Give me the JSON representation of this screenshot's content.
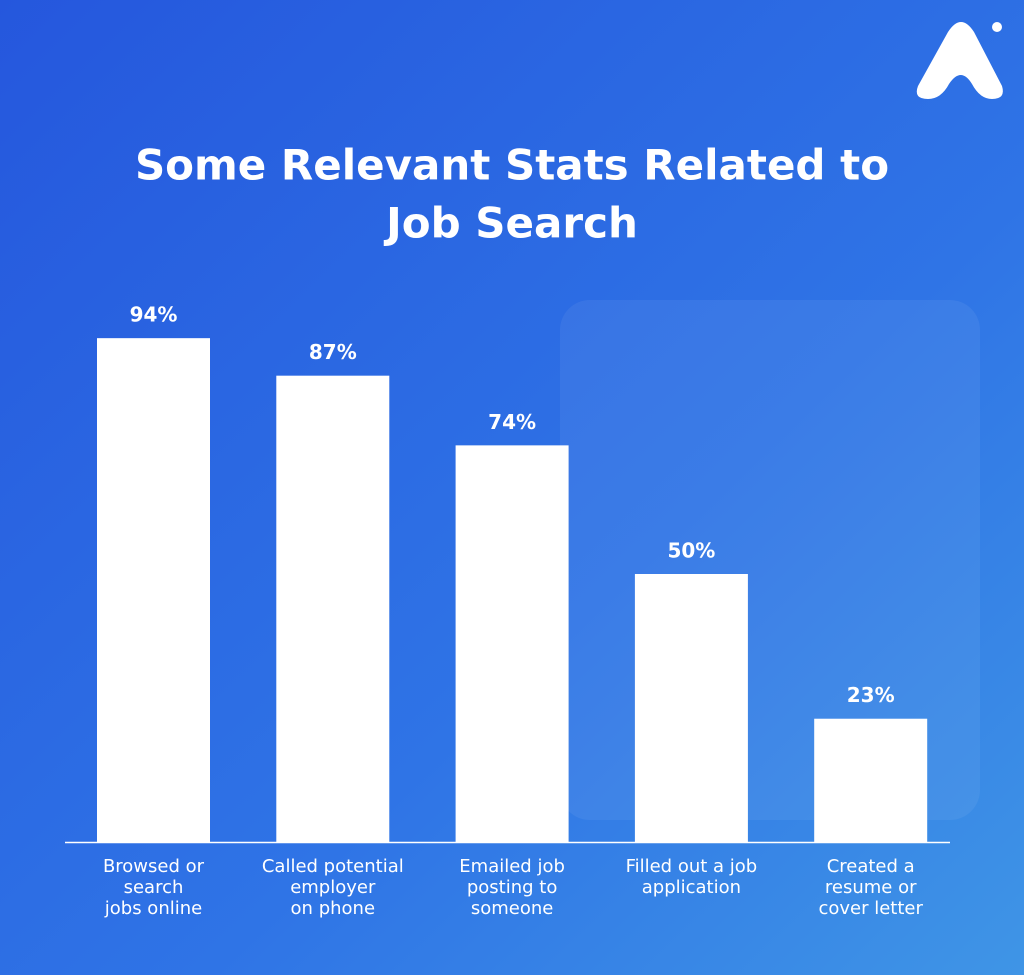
{
  "chart_data": {
    "type": "bar",
    "title": [
      "Some Relevant Stats Related to",
      "Job Search"
    ],
    "categories": [
      [
        "Browsed or",
        "search",
        "jobs online"
      ],
      [
        "Called potential",
        "employer",
        "on phone"
      ],
      [
        "Emailed job",
        "posting to",
        "someone"
      ],
      [
        "Filled out a job",
        "application"
      ],
      [
        "Created a",
        "resume or",
        "cover letter"
      ]
    ],
    "values": [
      94,
      87,
      74,
      50,
      23
    ],
    "value_labels": [
      "94%",
      "87%",
      "74%",
      "50%",
      "23%"
    ],
    "color": "#ffffff"
  }
}
